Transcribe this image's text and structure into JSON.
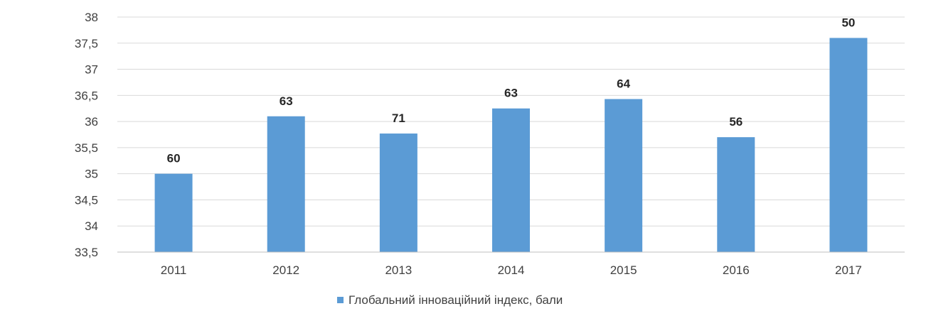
{
  "chart_data": {
    "type": "bar",
    "categories": [
      "2011",
      "2012",
      "2013",
      "2014",
      "2015",
      "2016",
      "2017"
    ],
    "values": [
      35.0,
      36.1,
      35.77,
      36.25,
      36.43,
      35.7,
      37.6
    ],
    "data_labels": [
      "60",
      "63",
      "71",
      "63",
      "64",
      "56",
      "50"
    ],
    "ylim": [
      33.5,
      38
    ],
    "y_ticks": [
      33.5,
      34,
      34.5,
      35,
      35.5,
      36,
      36.5,
      37,
      37.5,
      38
    ],
    "y_tick_labels": [
      "33,5",
      "34",
      "34,5",
      "35",
      "35,5",
      "36",
      "36,5",
      "37",
      "37,5",
      "38"
    ],
    "grid": true,
    "legend_position": "bottom",
    "series": [
      {
        "name": "Глобальний інноваційний індекс, бали",
        "color": "#5b9bd5"
      }
    ],
    "title": "",
    "xlabel": "",
    "ylabel": ""
  }
}
